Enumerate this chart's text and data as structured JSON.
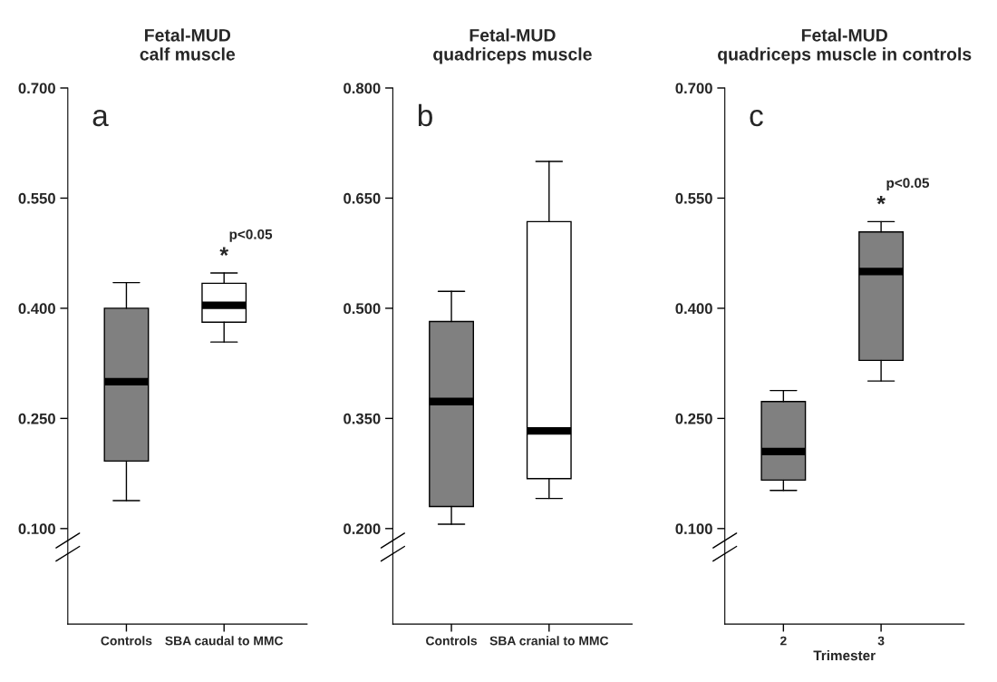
{
  "chart_data": [
    {
      "type": "box",
      "title": "Fetal-MUD\ncalf muscle",
      "categories": [
        "Controls",
        "SBA caudal to MMC"
      ],
      "colors": [
        "#808080",
        "#ffffff"
      ],
      "ylim": [
        -0.03,
        0.7
      ],
      "yticks": [
        {
          "value": 0.1,
          "label": "0.100"
        },
        {
          "value": 0.25,
          "label": "0.250"
        },
        {
          "value": 0.4,
          "label": "0.400"
        },
        {
          "value": 0.55,
          "label": "0.550"
        },
        {
          "value": 0.7,
          "label": "0.700"
        }
      ],
      "grid": false,
      "boxes": [
        {
          "low": 0.138,
          "q1": 0.192,
          "median": 0.3,
          "q3": 0.4,
          "high": 0.435
        },
        {
          "low": 0.354,
          "q1": 0.381,
          "median": 0.404,
          "q3": 0.434,
          "high": 0.448
        }
      ],
      "annotations": [
        "a",
        "*",
        "p<0.05"
      ]
    },
    {
      "type": "box",
      "title": "Fetal-MUD\nquadriceps muscle",
      "categories": [
        "Controls",
        "SBA cranial to MMC"
      ],
      "colors": [
        "#808080",
        "#ffffff"
      ],
      "ylim": [
        0.07,
        0.8
      ],
      "yticks": [
        {
          "value": 0.2,
          "label": "0.200"
        },
        {
          "value": 0.35,
          "label": "0.350"
        },
        {
          "value": 0.5,
          "label": "0.500"
        },
        {
          "value": 0.65,
          "label": "0.650"
        },
        {
          "value": 0.8,
          "label": "0.800"
        }
      ],
      "grid": false,
      "boxes": [
        {
          "low": 0.206,
          "q1": 0.23,
          "median": 0.373,
          "q3": 0.482,
          "high": 0.523
        },
        {
          "low": 0.241,
          "q1": 0.268,
          "median": 0.333,
          "q3": 0.618,
          "high": 0.7
        }
      ],
      "annotations": [
        "b"
      ]
    },
    {
      "type": "box",
      "title": "Fetal-MUD\nquadriceps muscle in controls",
      "xlabel": "Trimester",
      "categories": [
        "2",
        "3"
      ],
      "colors": [
        "#808080",
        "#808080"
      ],
      "ylim": [
        -0.03,
        0.7
      ],
      "yticks": [
        {
          "value": 0.1,
          "label": "0.100"
        },
        {
          "value": 0.25,
          "label": "0.250"
        },
        {
          "value": 0.4,
          "label": "0.400"
        },
        {
          "value": 0.55,
          "label": "0.550"
        },
        {
          "value": 0.7,
          "label": "0.700"
        }
      ],
      "grid": false,
      "boxes": [
        {
          "low": 0.152,
          "q1": 0.166,
          "median": 0.205,
          "q3": 0.273,
          "high": 0.288
        },
        {
          "low": 0.301,
          "q1": 0.329,
          "median": 0.45,
          "q3": 0.504,
          "high": 0.518
        }
      ],
      "annotations": [
        "c",
        "*",
        "p<0.05"
      ]
    }
  ]
}
